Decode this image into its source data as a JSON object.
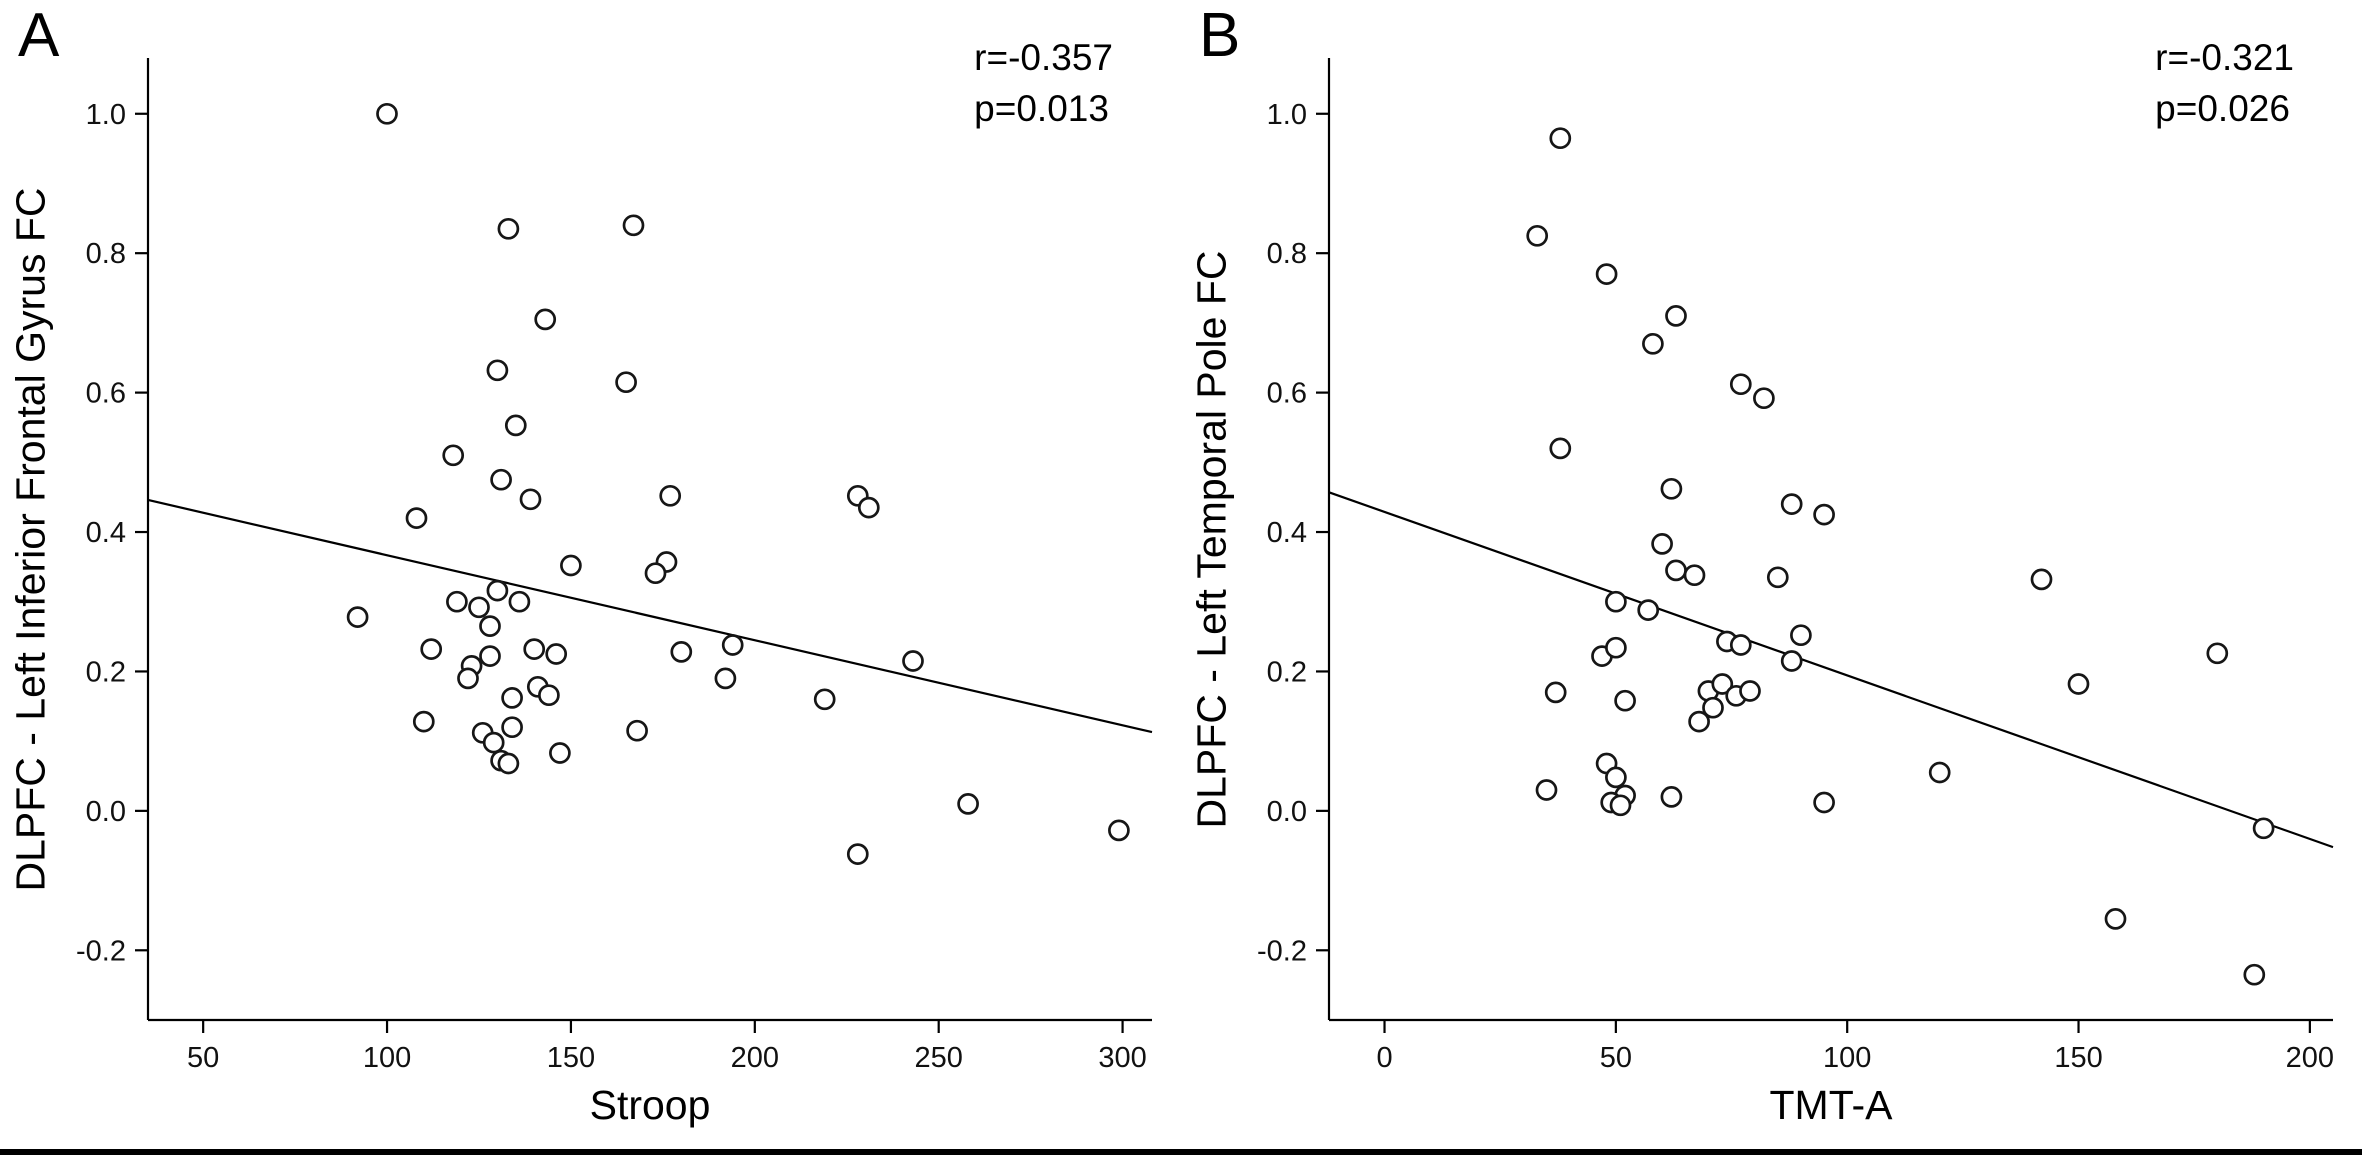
{
  "figure": {
    "background": "#ffffff",
    "point_color": "#ffffff",
    "point_stroke": "#161616",
    "line_color": "#000000"
  },
  "chart_data": [
    {
      "type": "scatter",
      "panel_label": "A",
      "annotation_r": "r=-0.357",
      "annotation_p": "p=0.013",
      "title": "",
      "xlabel": "Stroop",
      "ylabel": "DLPFC - Left Inferior Frontal Gyrus FC",
      "xlim": [
        35,
        308
      ],
      "ylim": [
        -0.3,
        1.08
      ],
      "xticks": [
        50,
        100,
        150,
        200,
        250,
        300
      ],
      "xtick_labels": [
        "50",
        "100",
        "150",
        "200",
        "250",
        "300"
      ],
      "yticks": [
        1.0,
        0.8,
        0.6,
        0.4,
        0.2,
        0.0,
        -0.2
      ],
      "ytick_labels": [
        "1.0",
        "0.8",
        "0.6",
        "0.4",
        "0.2",
        "0.0",
        "-0.2"
      ],
      "grid": false,
      "legend": false,
      "regression_line": [
        [
          35,
          0.446
        ],
        [
          308,
          0.113
        ]
      ],
      "points": [
        [
          100,
          1.0
        ],
        [
          133,
          0.835
        ],
        [
          167,
          0.84
        ],
        [
          143,
          0.705
        ],
        [
          130,
          0.632
        ],
        [
          165,
          0.615
        ],
        [
          135,
          0.553
        ],
        [
          118,
          0.51
        ],
        [
          131,
          0.475
        ],
        [
          139,
          0.447
        ],
        [
          177,
          0.452
        ],
        [
          228,
          0.452
        ],
        [
          231,
          0.435
        ],
        [
          108,
          0.42
        ],
        [
          150,
          0.352
        ],
        [
          176,
          0.357
        ],
        [
          173,
          0.341
        ],
        [
          92,
          0.278
        ],
        [
          119,
          0.3
        ],
        [
          125,
          0.292
        ],
        [
          130,
          0.316
        ],
        [
          136,
          0.3
        ],
        [
          128,
          0.265
        ],
        [
          112,
          0.232
        ],
        [
          123,
          0.208
        ],
        [
          128,
          0.222
        ],
        [
          140,
          0.232
        ],
        [
          146,
          0.225
        ],
        [
          180,
          0.228
        ],
        [
          194,
          0.238
        ],
        [
          122,
          0.19
        ],
        [
          134,
          0.162
        ],
        [
          141,
          0.178
        ],
        [
          144,
          0.166
        ],
        [
          192,
          0.19
        ],
        [
          219,
          0.16
        ],
        [
          243,
          0.215
        ],
        [
          110,
          0.128
        ],
        [
          126,
          0.112
        ],
        [
          129,
          0.098
        ],
        [
          134,
          0.12
        ],
        [
          168,
          0.115
        ],
        [
          131,
          0.072
        ],
        [
          133,
          0.068
        ],
        [
          147,
          0.083
        ],
        [
          258,
          0.01
        ],
        [
          228,
          -0.062
        ],
        [
          299,
          -0.028
        ]
      ]
    },
    {
      "type": "scatter",
      "panel_label": "B",
      "annotation_r": "r=-0.321",
      "annotation_p": "p=0.026",
      "title": "",
      "xlabel": "TMT-A",
      "ylabel": "DLPFC - Left Temporal Pole FC",
      "xlim": [
        -12,
        205
      ],
      "ylim": [
        -0.3,
        1.08
      ],
      "xticks": [
        0,
        50,
        100,
        150,
        200
      ],
      "xtick_labels": [
        "0",
        "50",
        "100",
        "150",
        "200"
      ],
      "yticks": [
        1.0,
        0.8,
        0.6,
        0.4,
        0.2,
        0.0,
        -0.2
      ],
      "ytick_labels": [
        "1.0",
        "0.8",
        "0.6",
        "0.4",
        "0.2",
        "0.0",
        "-0.2"
      ],
      "grid": false,
      "legend": false,
      "regression_line": [
        [
          -12,
          0.457
        ],
        [
          205,
          -0.052
        ]
      ],
      "points": [
        [
          38,
          0.965
        ],
        [
          33,
          0.825
        ],
        [
          48,
          0.77
        ],
        [
          63,
          0.71
        ],
        [
          58,
          0.67
        ],
        [
          77,
          0.612
        ],
        [
          82,
          0.592
        ],
        [
          38,
          0.52
        ],
        [
          62,
          0.462
        ],
        [
          88,
          0.44
        ],
        [
          95,
          0.425
        ],
        [
          60,
          0.383
        ],
        [
          63,
          0.345
        ],
        [
          67,
          0.338
        ],
        [
          85,
          0.335
        ],
        [
          142,
          0.332
        ],
        [
          50,
          0.3
        ],
        [
          57,
          0.288
        ],
        [
          74,
          0.243
        ],
        [
          77,
          0.238
        ],
        [
          47,
          0.222
        ],
        [
          50,
          0.234
        ],
        [
          90,
          0.252
        ],
        [
          88,
          0.215
        ],
        [
          180,
          0.226
        ],
        [
          150,
          0.182
        ],
        [
          37,
          0.17
        ],
        [
          52,
          0.158
        ],
        [
          70,
          0.172
        ],
        [
          73,
          0.182
        ],
        [
          76,
          0.165
        ],
        [
          79,
          0.172
        ],
        [
          68,
          0.128
        ],
        [
          71,
          0.148
        ],
        [
          48,
          0.068
        ],
        [
          50,
          0.048
        ],
        [
          120,
          0.055
        ],
        [
          35,
          0.03
        ],
        [
          52,
          0.022
        ],
        [
          49,
          0.012
        ],
        [
          51,
          0.008
        ],
        [
          62,
          0.02
        ],
        [
          95,
          0.012
        ],
        [
          190,
          -0.025
        ],
        [
          158,
          -0.155
        ],
        [
          188,
          -0.235
        ]
      ]
    }
  ]
}
